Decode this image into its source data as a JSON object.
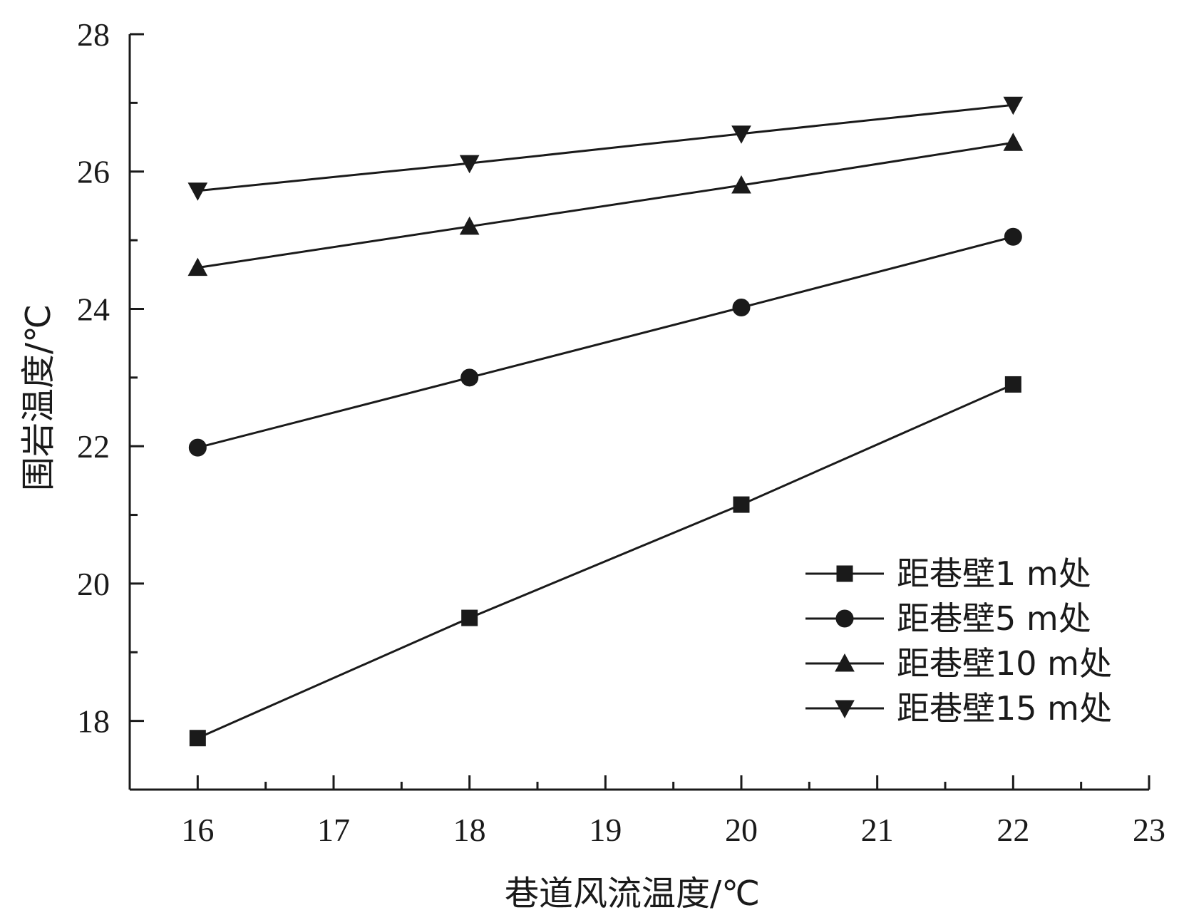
{
  "chart_data": {
    "type": "line",
    "title": "",
    "xlabel": "巷道风流温度/℃",
    "ylabel": "围岩温度/℃",
    "xlim": [
      15.5,
      23
    ],
    "ylim": [
      17,
      28
    ],
    "x_ticks": [
      16,
      17,
      18,
      19,
      20,
      21,
      22,
      23
    ],
    "y_ticks": [
      18,
      20,
      22,
      24,
      26,
      28
    ],
    "legend_position": "bottom-right",
    "grid": false,
    "series": [
      {
        "name": "距巷壁1 m处",
        "marker": "square",
        "x": [
          16,
          18,
          20,
          22
        ],
        "y": [
          17.75,
          19.5,
          21.15,
          22.9
        ]
      },
      {
        "name": "距巷壁5 m处",
        "marker": "circle",
        "x": [
          16,
          18,
          20,
          22
        ],
        "y": [
          21.98,
          23.0,
          24.02,
          25.05
        ]
      },
      {
        "name": "距巷壁10 m处",
        "marker": "triangle-up",
        "x": [
          16,
          18,
          20,
          22
        ],
        "y": [
          24.6,
          25.2,
          25.8,
          26.42
        ]
      },
      {
        "name": "距巷壁15 m处",
        "marker": "triangle-down",
        "x": [
          16,
          18,
          20,
          22
        ],
        "y": [
          25.72,
          26.12,
          26.55,
          26.97
        ]
      }
    ]
  }
}
